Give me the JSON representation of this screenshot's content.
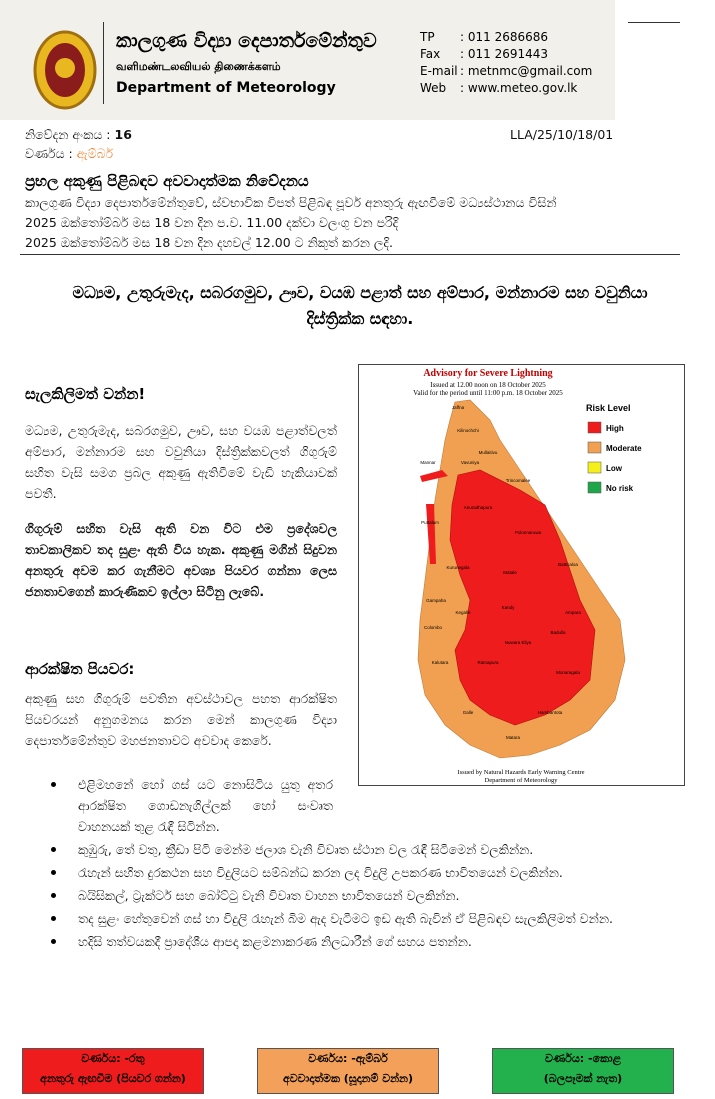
{
  "header": {
    "title_si": "කාලගුණ විද්‍යා දෙපාර්තමේන්තුව",
    "title_ta": "வளிமண்டலவியல் திணைக்களம்",
    "title_en": "Department of Meteorology",
    "contacts": [
      {
        "label": "TP",
        "value": ": 011 2686686"
      },
      {
        "label": "Fax",
        "value": ": 011 2691443"
      },
      {
        "label": "E-mail",
        "value": ": metnmc@gmail.com"
      },
      {
        "label": "Web",
        "value": ": www.meteo.gov.lk"
      }
    ]
  },
  "meta": {
    "notice_label": "නිවේදන අංකය :",
    "notice_number": "16",
    "reference": "LLA/25/10/18/01",
    "color_label": "වර්ණය :",
    "color_value": "ඇම්බර්"
  },
  "notice": {
    "title": "ප්‍රභල අකුණු පිළිබඳව අවවාදාත්මක නිවේදනය",
    "lines": [
      "කාලගුණ විද්‍යා දෙපාර්තමේන්තුවේ, ස්වභාවික විපත් පිළිබඳ පූර්ව අනතුරු ඇඟවීමේ මධ්‍යස්ථානය විසින්",
      "2025 ඔක්තෝම්බර් මස 18 වන දින ප.ව. 11.00 දක්වා වලංගු වන පරිදි",
      "2025 ඔක්තෝම්බර් මස 18 වන දින දහවල් 12.00 ට නිකුත් කරන ලදි."
    ],
    "areas": "මධ්‍යම, උතුරුමැද, සබරගමුව, ඌව, වයඹ පළාත් සහ අම්පාර, මන්නාරම සහ වවුනියා දිස්ත්‍රික්ක සඳහා."
  },
  "body": {
    "heading1": "සැලකිලිමත් වන්න!",
    "para1": "මධ්‍යම, උතුරුමැද, සබරගමුව, ඌව, සහ වයඹ පළාත්වලත් අම්පාර, මන්නාරම සහ වවුනියා දිස්ත්‍රික්කවලත් ගිගුරුම් සහිත වැසි සමග ප්‍රබල අකුණු ඇතිවීමේ වැඩි හැකියාවක් පවතී.",
    "para2": "ගිගුරුම් සහිත වැසි ඇති වන විට එම ප්‍රදේශවල තාවකාලිකව තද සුළං ඇති විය හැක. අකුණු මගින් සිදුවන අනතුරු අවම කර ගැනීමට අවශ්‍ය පියවර ගන්නා ලෙස ජනතාවගෙන් කාරුණිකව ඉල්ලා සිටිනු ලැබේ.",
    "heading2": "ආරක්ෂිත පියවර:",
    "para3": "අකුණු සහ ගිගුරුම් පවතින අවස්ථාවල පහත ආරක්ෂිත පියවරයන් අනුගමනය කරන මෙන් කාලගුණ විද්‍යා දෙපාර්තමේන්තුව මහජනතාවට අවවාද කෙරේ.",
    "bullets": [
      "එළිමහනේ හෝ ගස් යට නොසිටිය යුතු අතර ආරක්ෂිත ගොඩනැගිල්ලක් හෝ සංවෘත වාහනයක් තුළ රැඳී සිටින්න.",
      "කුඹුරු, තේ වතු, ක්‍රීඩා පිටි මෙන්ම ජලාශ වැනි විවෘත ස්ථාන වල රැඳී සිටීමෙන් වලකින්න.",
      "රැහැන් සහිත දුරකථන සහ විදුලියට සම්බන්ධ කරන ලද විදුලි උපකරණ භාවිතයෙන් වලකින්න.",
      "බයිසිකල්, ට්‍රැක්ටර් සහ බෝට්ටු වැනි විවෘත වාහන භාවිතයෙන් වලකින්න.",
      "තද සුළං හේතුවෙන් ගස් හා විදුලි රැහැන් බිම ඇද වැටීමට ඉඩ ඇති බැවින් ඒ පිළිබඳව සැලකිලිමත් වන්න.",
      "හදිසි තත්වයකදී ප්‍රාදේශීය ආපදා කළමනාකරණ නිලධාරීන් ගේ සහය පතන්න."
    ]
  },
  "map": {
    "title": "Advisory for Severe Lightning",
    "issued": "Issued at 12.00 noon on 18 October 2025",
    "valid": "Valid for the period until 11:00 p.m. 18 October 2025",
    "legend_title": "Risk Level",
    "legend": [
      {
        "label": "High",
        "color": "#ee1c1c"
      },
      {
        "label": "Moderate",
        "color": "#f0a050"
      },
      {
        "label": "Low",
        "color": "#f5f01a"
      },
      {
        "label": "No risk",
        "color": "#1fa64a"
      }
    ],
    "districts": [
      "Jaffna",
      "Kilinochchi",
      "Mullaitivu",
      "Mannar",
      "Vavuniya",
      "Trincomalee",
      "Anuradhapura",
      "Puttalam",
      "Polonnaruwa",
      "Kurunegala",
      "Batticaloa",
      "Matale",
      "Gampaha",
      "Kandy",
      "Ampara",
      "Kegalle",
      "Colombo",
      "Nuwara Eliya",
      "Badulla",
      "Kalutara",
      "Ratnapura",
      "Monaragala",
      "Galle",
      "Matara",
      "Hambantota"
    ],
    "footer1": "Issued by Natural Hazards Early Warning Centre",
    "footer2": "Department of Meteorology"
  },
  "legend_boxes": [
    {
      "color": "#ee1c1c",
      "line1": "වර්ණය: -රතු",
      "line2": "අනතුරු ඇඟවීම (පියවර ගන්න)"
    },
    {
      "color": "#f3a15a",
      "line1": "වර්ණය: -ඇම්බර්",
      "line2": "අවවාදාත්මක (සූදානම් වන්න)"
    },
    {
      "color": "#22b14c",
      "line1": "වර්ණය: -කොළ",
      "line2": "(බලපෑමක් නැත)"
    }
  ]
}
